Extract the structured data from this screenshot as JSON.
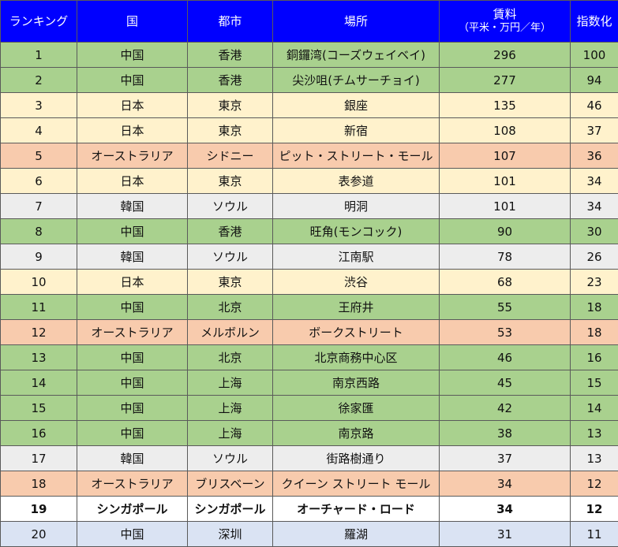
{
  "colors": {
    "header_bg": "#0000ff",
    "china": "#a9d18e",
    "japan": "#fff2cc",
    "australia": "#f8cbad",
    "korea": "#ededed",
    "singapore": "#ffffff",
    "shenzhen": "#dae3f3"
  },
  "headers": {
    "rank": "ランキング",
    "country": "国",
    "city": "都市",
    "place": "場所",
    "rent": "賃料",
    "rent_unit": "（平米・万円／年）",
    "index": "指数化"
  },
  "rows": [
    {
      "rank": "1",
      "country": "中国",
      "city": "香港",
      "place": "銅鑼湾(コーズウェイベイ)",
      "rent": "296",
      "index": "100",
      "color": "#a9d18e"
    },
    {
      "rank": "2",
      "country": "中国",
      "city": "香港",
      "place": "尖沙咀(チムサーチョイ)",
      "rent": "277",
      "index": "94",
      "color": "#a9d18e"
    },
    {
      "rank": "3",
      "country": "日本",
      "city": "東京",
      "place": "銀座",
      "rent": "135",
      "index": "46",
      "color": "#fff2cc"
    },
    {
      "rank": "4",
      "country": "日本",
      "city": "東京",
      "place": "新宿",
      "rent": "108",
      "index": "37",
      "color": "#fff2cc"
    },
    {
      "rank": "5",
      "country": "オーストラリア",
      "city": "シドニー",
      "place": "ピット・ストリート・モール",
      "rent": "107",
      "index": "36",
      "color": "#f8cbad"
    },
    {
      "rank": "6",
      "country": "日本",
      "city": "東京",
      "place": "表参道",
      "rent": "101",
      "index": "34",
      "color": "#fff2cc"
    },
    {
      "rank": "7",
      "country": "韓国",
      "city": "ソウル",
      "place": "明洞",
      "rent": "101",
      "index": "34",
      "color": "#ededed"
    },
    {
      "rank": "8",
      "country": "中国",
      "city": "香港",
      "place": "旺角(モンコック)",
      "rent": "90",
      "index": "30",
      "color": "#a9d18e"
    },
    {
      "rank": "9",
      "country": "韓国",
      "city": "ソウル",
      "place": "江南駅",
      "rent": "78",
      "index": "26",
      "color": "#ededed"
    },
    {
      "rank": "10",
      "country": "日本",
      "city": "東京",
      "place": "渋谷",
      "rent": "68",
      "index": "23",
      "color": "#fff2cc"
    },
    {
      "rank": "11",
      "country": "中国",
      "city": "北京",
      "place": "王府井",
      "rent": "55",
      "index": "18",
      "color": "#a9d18e"
    },
    {
      "rank": "12",
      "country": "オーストラリア",
      "city": "メルボルン",
      "place": "ボークストリート",
      "rent": "53",
      "index": "18",
      "color": "#f8cbad"
    },
    {
      "rank": "13",
      "country": "中国",
      "city": "北京",
      "place": "北京商務中心区",
      "rent": "46",
      "index": "16",
      "color": "#a9d18e"
    },
    {
      "rank": "14",
      "country": "中国",
      "city": "上海",
      "place": "南京西路",
      "rent": "45",
      "index": "15",
      "color": "#a9d18e"
    },
    {
      "rank": "15",
      "country": "中国",
      "city": "上海",
      "place": "徐家匯",
      "rent": "42",
      "index": "14",
      "color": "#a9d18e"
    },
    {
      "rank": "16",
      "country": "中国",
      "city": "上海",
      "place": "南京路",
      "rent": "38",
      "index": "13",
      "color": "#a9d18e"
    },
    {
      "rank": "17",
      "country": "韓国",
      "city": "ソウル",
      "place": "街路樹通り",
      "rent": "37",
      "index": "13",
      "color": "#ededed"
    },
    {
      "rank": "18",
      "country": "オーストラリア",
      "city": "ブリスベーン",
      "place": "クイーン ストリート モール",
      "rent": "34",
      "index": "12",
      "color": "#f8cbad"
    },
    {
      "rank": "19",
      "country": "シンガポール",
      "city": "シンガポール",
      "place": "オーチャード・ロード",
      "rent": "34",
      "index": "12",
      "color": "#ffffff",
      "highlight": true
    },
    {
      "rank": "20",
      "country": "中国",
      "city": "深圳",
      "place": "羅湖",
      "rent": "31",
      "index": "11",
      "color": "#dae3f3"
    }
  ]
}
